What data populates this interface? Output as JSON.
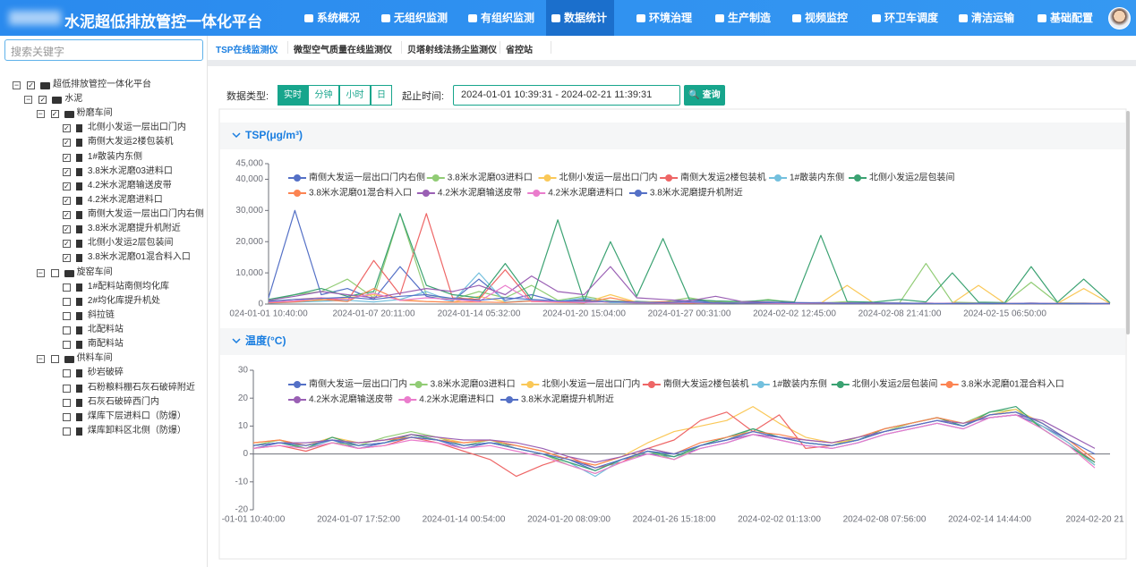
{
  "header": {
    "title": "水泥超低排放管控一体化平台",
    "nav": [
      "系统概况",
      "无组织监测",
      "有组织监测",
      "数据统计",
      "环境治理",
      "生产制造",
      "视频监控",
      "环卫车调度",
      "清洁运输",
      "基础配置"
    ],
    "active_nav": 3
  },
  "sidebar": {
    "search_placeholder": "搜索关键字",
    "tree": {
      "label": "超低排放管控一体化平台",
      "checked": true,
      "children": [
        {
          "label": "水泥",
          "checked": true,
          "children": [
            {
              "label": "粉磨车间",
              "checked": true,
              "children": [
                {
                  "label": "北侧小发运一层出口门内",
                  "checked": true
                },
                {
                  "label": "南侧大发运2楼包装机",
                  "checked": true
                },
                {
                  "label": "1#散装内东侧",
                  "checked": true
                },
                {
                  "label": "3.8米水泥磨03进料口",
                  "checked": true
                },
                {
                  "label": "4.2米水泥磨输送皮带",
                  "checked": true
                },
                {
                  "label": "4.2米水泥磨进料口",
                  "checked": true
                },
                {
                  "label": "南侧大发运一层出口门内右侧",
                  "checked": true
                },
                {
                  "label": "3.8米水泥磨提升机附近",
                  "checked": true
                },
                {
                  "label": "北侧小发运2层包装间",
                  "checked": true
                },
                {
                  "label": "3.8米水泥磨01混合料入口",
                  "checked": true
                }
              ]
            },
            {
              "label": "旋窑车间",
              "checked": false,
              "children": [
                {
                  "label": "1#配料站南侧均化库",
                  "checked": false
                },
                {
                  "label": "2#均化库提升机处",
                  "checked": false
                },
                {
                  "label": "斜拉链",
                  "checked": false
                },
                {
                  "label": "北配料站",
                  "checked": false
                },
                {
                  "label": "南配料站",
                  "checked": false
                }
              ]
            },
            {
              "label": "供料车间",
              "checked": false,
              "children": [
                {
                  "label": "砂岩破碎",
                  "checked": false
                },
                {
                  "label": "石粉粮料棚石灰石破碎附近",
                  "checked": false
                },
                {
                  "label": "石灰石破碎西门内",
                  "checked": false
                },
                {
                  "label": "煤库下层进料口（防爆）",
                  "checked": false
                },
                {
                  "label": "煤库卸料区北侧（防爆）",
                  "checked": false
                }
              ]
            }
          ]
        }
      ]
    }
  },
  "tabs": {
    "items": [
      "TSP在线监测仪",
      "微型空气质量在线监测仪",
      "贝塔射线法扬尘监测仪",
      "省控站"
    ],
    "active": 0
  },
  "filter": {
    "type_label": "数据类型:",
    "types": [
      "实时",
      "分钟",
      "小时",
      "日"
    ],
    "active_type": 0,
    "range_label": "起止时间:",
    "range_value": "2024-01-01 10:39:31 - 2024-02-21 11:39:31",
    "query": "查询"
  },
  "chart_data": [
    {
      "type": "line",
      "title": "TSP(μg/m³)",
      "x": [
        "024-01-01 10:40:00",
        null,
        null,
        null,
        "2024-01-07 20:11:00",
        null,
        null,
        null,
        "2024-01-14 05:32:00",
        null,
        null,
        null,
        "2024-01-20 15:04:00",
        null,
        null,
        null,
        "2024-01-27 00:31:00",
        null,
        null,
        null,
        "2024-02-02 12:45:00",
        null,
        null,
        null,
        "2024-02-08 21:41:00",
        null,
        null,
        null,
        "2024-02-15 06:50:00",
        null,
        null,
        null,
        null
      ],
      "ylim": [
        0,
        45000
      ],
      "yticks": [
        0,
        {
          "value": 10000,
          "label": "10,000"
        },
        {
          "value": 20000,
          "label": "20,000"
        },
        {
          "value": 30000,
          "label": "30,000"
        },
        {
          "value": 40000,
          "label": "40,000"
        },
        {
          "value": 45000,
          "label": "45,000"
        }
      ],
      "grid": false,
      "series": [
        {
          "name": "南侧大发运一层出口门内右侧",
          "color": "#5470c6",
          "values": [
            2000,
            30000,
            3000,
            5000,
            1500,
            12000,
            2500,
            1000,
            8000,
            1200,
            3000,
            800,
            1500,
            600,
            900,
            500,
            1200,
            700,
            400,
            600,
            300,
            500,
            400,
            300,
            200,
            300,
            200,
            300,
            200,
            300,
            200,
            300,
            200
          ]
        },
        {
          "name": "3.8米水泥磨03进料口",
          "color": "#91cc75",
          "values": [
            1000,
            3000,
            4000,
            8000,
            2000,
            29000,
            3000,
            1500,
            4000,
            2000,
            6000,
            1200,
            2500,
            1000,
            800,
            700,
            2000,
            600,
            500,
            1500,
            400,
            300,
            800,
            300,
            500,
            13000,
            600,
            400,
            300,
            7000,
            400,
            300,
            200
          ]
        },
        {
          "name": "北侧小发运一层出口门内",
          "color": "#fac858",
          "values": [
            500,
            800,
            1200,
            2000,
            3000,
            1500,
            800,
            600,
            2500,
            700,
            1000,
            500,
            400,
            3000,
            600,
            800,
            500,
            400,
            300,
            500,
            400,
            300,
            6000,
            400,
            300,
            200,
            300,
            6000,
            200,
            300,
            200,
            5000,
            200
          ]
        },
        {
          "name": "南侧大发运2楼包装机",
          "color": "#ee6666",
          "values": [
            800,
            1500,
            2000,
            1000,
            14000,
            3000,
            29000,
            2000,
            1500,
            11000,
            800,
            600,
            1200,
            500,
            400,
            700,
            500,
            400,
            300,
            400,
            300,
            200,
            300,
            200,
            300,
            200,
            150,
            200,
            150,
            200,
            150,
            200,
            150
          ]
        },
        {
          "name": "1#散装内东侧",
          "color": "#73c0de",
          "values": [
            300,
            600,
            900,
            1200,
            700,
            1500,
            4000,
            800,
            10000,
            600,
            1200,
            900,
            2000,
            500,
            400,
            300,
            700,
            400,
            300,
            600,
            500,
            400,
            300,
            500,
            400,
            300,
            200,
            300,
            200,
            300,
            200,
            200,
            150
          ]
        },
        {
          "name": "北侧小发运2层包装间",
          "color": "#3ba272",
          "values": [
            1500,
            3000,
            5000,
            2500,
            4000,
            29000,
            6000,
            3000,
            2000,
            13000,
            1500,
            27000,
            1000,
            20000,
            2500,
            21000,
            1500,
            1000,
            800,
            1200,
            700,
            22000,
            800,
            600,
            1500,
            700,
            10000,
            600,
            500,
            12000,
            600,
            8000,
            400
          ]
        },
        {
          "name": "3.8米水泥磨01混合料入口",
          "color": "#fc8452",
          "values": [
            400,
            700,
            1500,
            800,
            5000,
            1200,
            800,
            600,
            700,
            500,
            1000,
            600,
            400,
            2000,
            500,
            400,
            300,
            500,
            300,
            400,
            300,
            200,
            300,
            200,
            200,
            300,
            200,
            200,
            150,
            200,
            150,
            200,
            150
          ]
        },
        {
          "name": "4.2米水泥磨输送皮带",
          "color": "#9a60b4",
          "values": [
            1200,
            2500,
            4000,
            3000,
            2000,
            3500,
            5000,
            4000,
            6000,
            3000,
            9000,
            4000,
            3000,
            12000,
            2000,
            1500,
            1000,
            2500,
            800,
            600,
            500,
            400,
            300,
            400,
            300,
            200,
            300,
            200,
            200,
            300,
            200,
            200,
            150
          ]
        },
        {
          "name": "4.2米水泥磨进料口",
          "color": "#ea7ccc",
          "values": [
            600,
            1000,
            2000,
            1500,
            3500,
            1200,
            2000,
            1500,
            800,
            6000,
            1000,
            700,
            500,
            800,
            400,
            300,
            500,
            300,
            400,
            300,
            200,
            300,
            200,
            300,
            200,
            300,
            200,
            150,
            200,
            150,
            200,
            150,
            150
          ]
        },
        {
          "name": "3.8米水泥磨提升机附近",
          "color": "#5470c6",
          "values": [
            900,
            1500,
            1800,
            2200,
            1500,
            2500,
            3000,
            1800,
            1200,
            2000,
            1500,
            1000,
            900,
            800,
            600,
            500,
            700,
            400,
            300,
            500,
            400,
            300,
            200,
            300,
            200,
            200,
            150,
            200,
            150,
            200,
            150,
            150,
            150
          ]
        }
      ]
    },
    {
      "type": "line",
      "title": "温度(°C)",
      "x": [
        "-01-01 10:40:00",
        null,
        null,
        null,
        "2024-01-07 17:52:00",
        null,
        null,
        null,
        "2024-01-14 00:54:00",
        null,
        null,
        null,
        "2024-01-20 08:09:00",
        null,
        null,
        null,
        "2024-01-26 15:18:00",
        null,
        null,
        null,
        "2024-02-02 01:13:00",
        null,
        null,
        null,
        "2024-02-08 07:56:00",
        null,
        null,
        null,
        "2024-02-14 14:44:00",
        null,
        null,
        null,
        "2024-02-20 21"
      ],
      "ylim": [
        -20,
        30
      ],
      "yticks": [
        -20,
        -10,
        0,
        10,
        20,
        30
      ],
      "grid": false,
      "series": [
        {
          "name": "南侧大发运一层出口门内",
          "color": "#5470c6",
          "values": [
            2,
            4,
            3,
            5,
            2,
            4,
            7,
            5,
            2,
            4,
            3,
            1,
            -2,
            -6,
            -2,
            0,
            -1,
            2,
            4,
            7,
            5,
            3,
            2,
            4,
            7,
            9,
            11,
            9,
            13,
            14,
            10,
            5,
            -2
          ]
        },
        {
          "name": "3.8米水泥磨03进料口",
          "color": "#91cc75",
          "values": [
            3,
            5,
            2,
            4,
            3,
            6,
            8,
            6,
            3,
            5,
            2,
            0,
            -4,
            -7,
            -3,
            1,
            -2,
            3,
            5,
            9,
            6,
            4,
            3,
            6,
            8,
            11,
            13,
            11,
            15,
            16,
            9,
            3,
            -4
          ]
        },
        {
          "name": "北侧小发运一层出口门内",
          "color": "#fac858",
          "values": [
            4,
            5,
            3,
            6,
            4,
            5,
            7,
            6,
            4,
            5,
            3,
            1,
            -2,
            -4,
            -1,
            4,
            8,
            10,
            12,
            17,
            11,
            6,
            4,
            5,
            8,
            10,
            12,
            10,
            14,
            16,
            11,
            5,
            -2
          ]
        },
        {
          "name": "南侧大发运2楼包装机",
          "color": "#ee6666",
          "values": [
            2,
            3,
            1,
            4,
            2,
            3,
            6,
            4,
            1,
            -2,
            -8,
            -4,
            -1,
            -5,
            -3,
            2,
            5,
            12,
            15,
            8,
            14,
            2,
            3,
            5,
            8,
            10,
            12,
            10,
            14,
            15,
            10,
            4,
            -3
          ]
        },
        {
          "name": "1#散装内东侧",
          "color": "#73c0de",
          "values": [
            3,
            4,
            2,
            5,
            3,
            4,
            6,
            5,
            3,
            4,
            2,
            0,
            -3,
            -8,
            -2,
            1,
            -1,
            3,
            5,
            8,
            6,
            4,
            3,
            5,
            8,
            10,
            12,
            10,
            14,
            15,
            10,
            4,
            -4
          ]
        },
        {
          "name": "北侧小发运2层包装间",
          "color": "#3ba272",
          "values": [
            3,
            4,
            2,
            6,
            3,
            4,
            7,
            5,
            3,
            4,
            2,
            0,
            -3,
            -6,
            -2,
            1,
            -1,
            3,
            6,
            9,
            6,
            4,
            3,
            5,
            9,
            11,
            13,
            10,
            15,
            17,
            9,
            3,
            -3
          ]
        },
        {
          "name": "3.8米水泥磨01混合料入口",
          "color": "#fc8452",
          "values": [
            4,
            5,
            3,
            5,
            4,
            5,
            6,
            5,
            4,
            5,
            3,
            1,
            -2,
            -4,
            -1,
            2,
            0,
            4,
            6,
            8,
            7,
            5,
            4,
            6,
            9,
            11,
            13,
            11,
            14,
            15,
            11,
            5,
            -2
          ]
        },
        {
          "name": "4.2米水泥磨输送皮带",
          "color": "#9a60b4",
          "values": [
            3,
            4,
            4,
            5,
            4,
            5,
            7,
            6,
            5,
            5,
            4,
            2,
            -1,
            -3,
            -1,
            2,
            0,
            3,
            5,
            7,
            6,
            5,
            4,
            6,
            8,
            10,
            12,
            11,
            13,
            14,
            12,
            7,
            2
          ]
        },
        {
          "name": "4.2米水泥磨进料口",
          "color": "#ea7ccc",
          "values": [
            2,
            3,
            2,
            4,
            2,
            3,
            5,
            4,
            2,
            3,
            1,
            -1,
            -4,
            -7,
            -3,
            0,
            -2,
            2,
            4,
            7,
            5,
            3,
            2,
            4,
            7,
            9,
            11,
            9,
            13,
            14,
            9,
            3,
            -5
          ]
        },
        {
          "name": "3.8米水泥磨提升机附近",
          "color": "#5470c6",
          "values": [
            3,
            4,
            3,
            5,
            3,
            4,
            6,
            5,
            3,
            4,
            2,
            0,
            -2,
            -5,
            -2,
            1,
            0,
            3,
            5,
            8,
            6,
            4,
            3,
            5,
            8,
            10,
            12,
            10,
            14,
            15,
            11,
            5,
            0
          ]
        }
      ]
    }
  ]
}
